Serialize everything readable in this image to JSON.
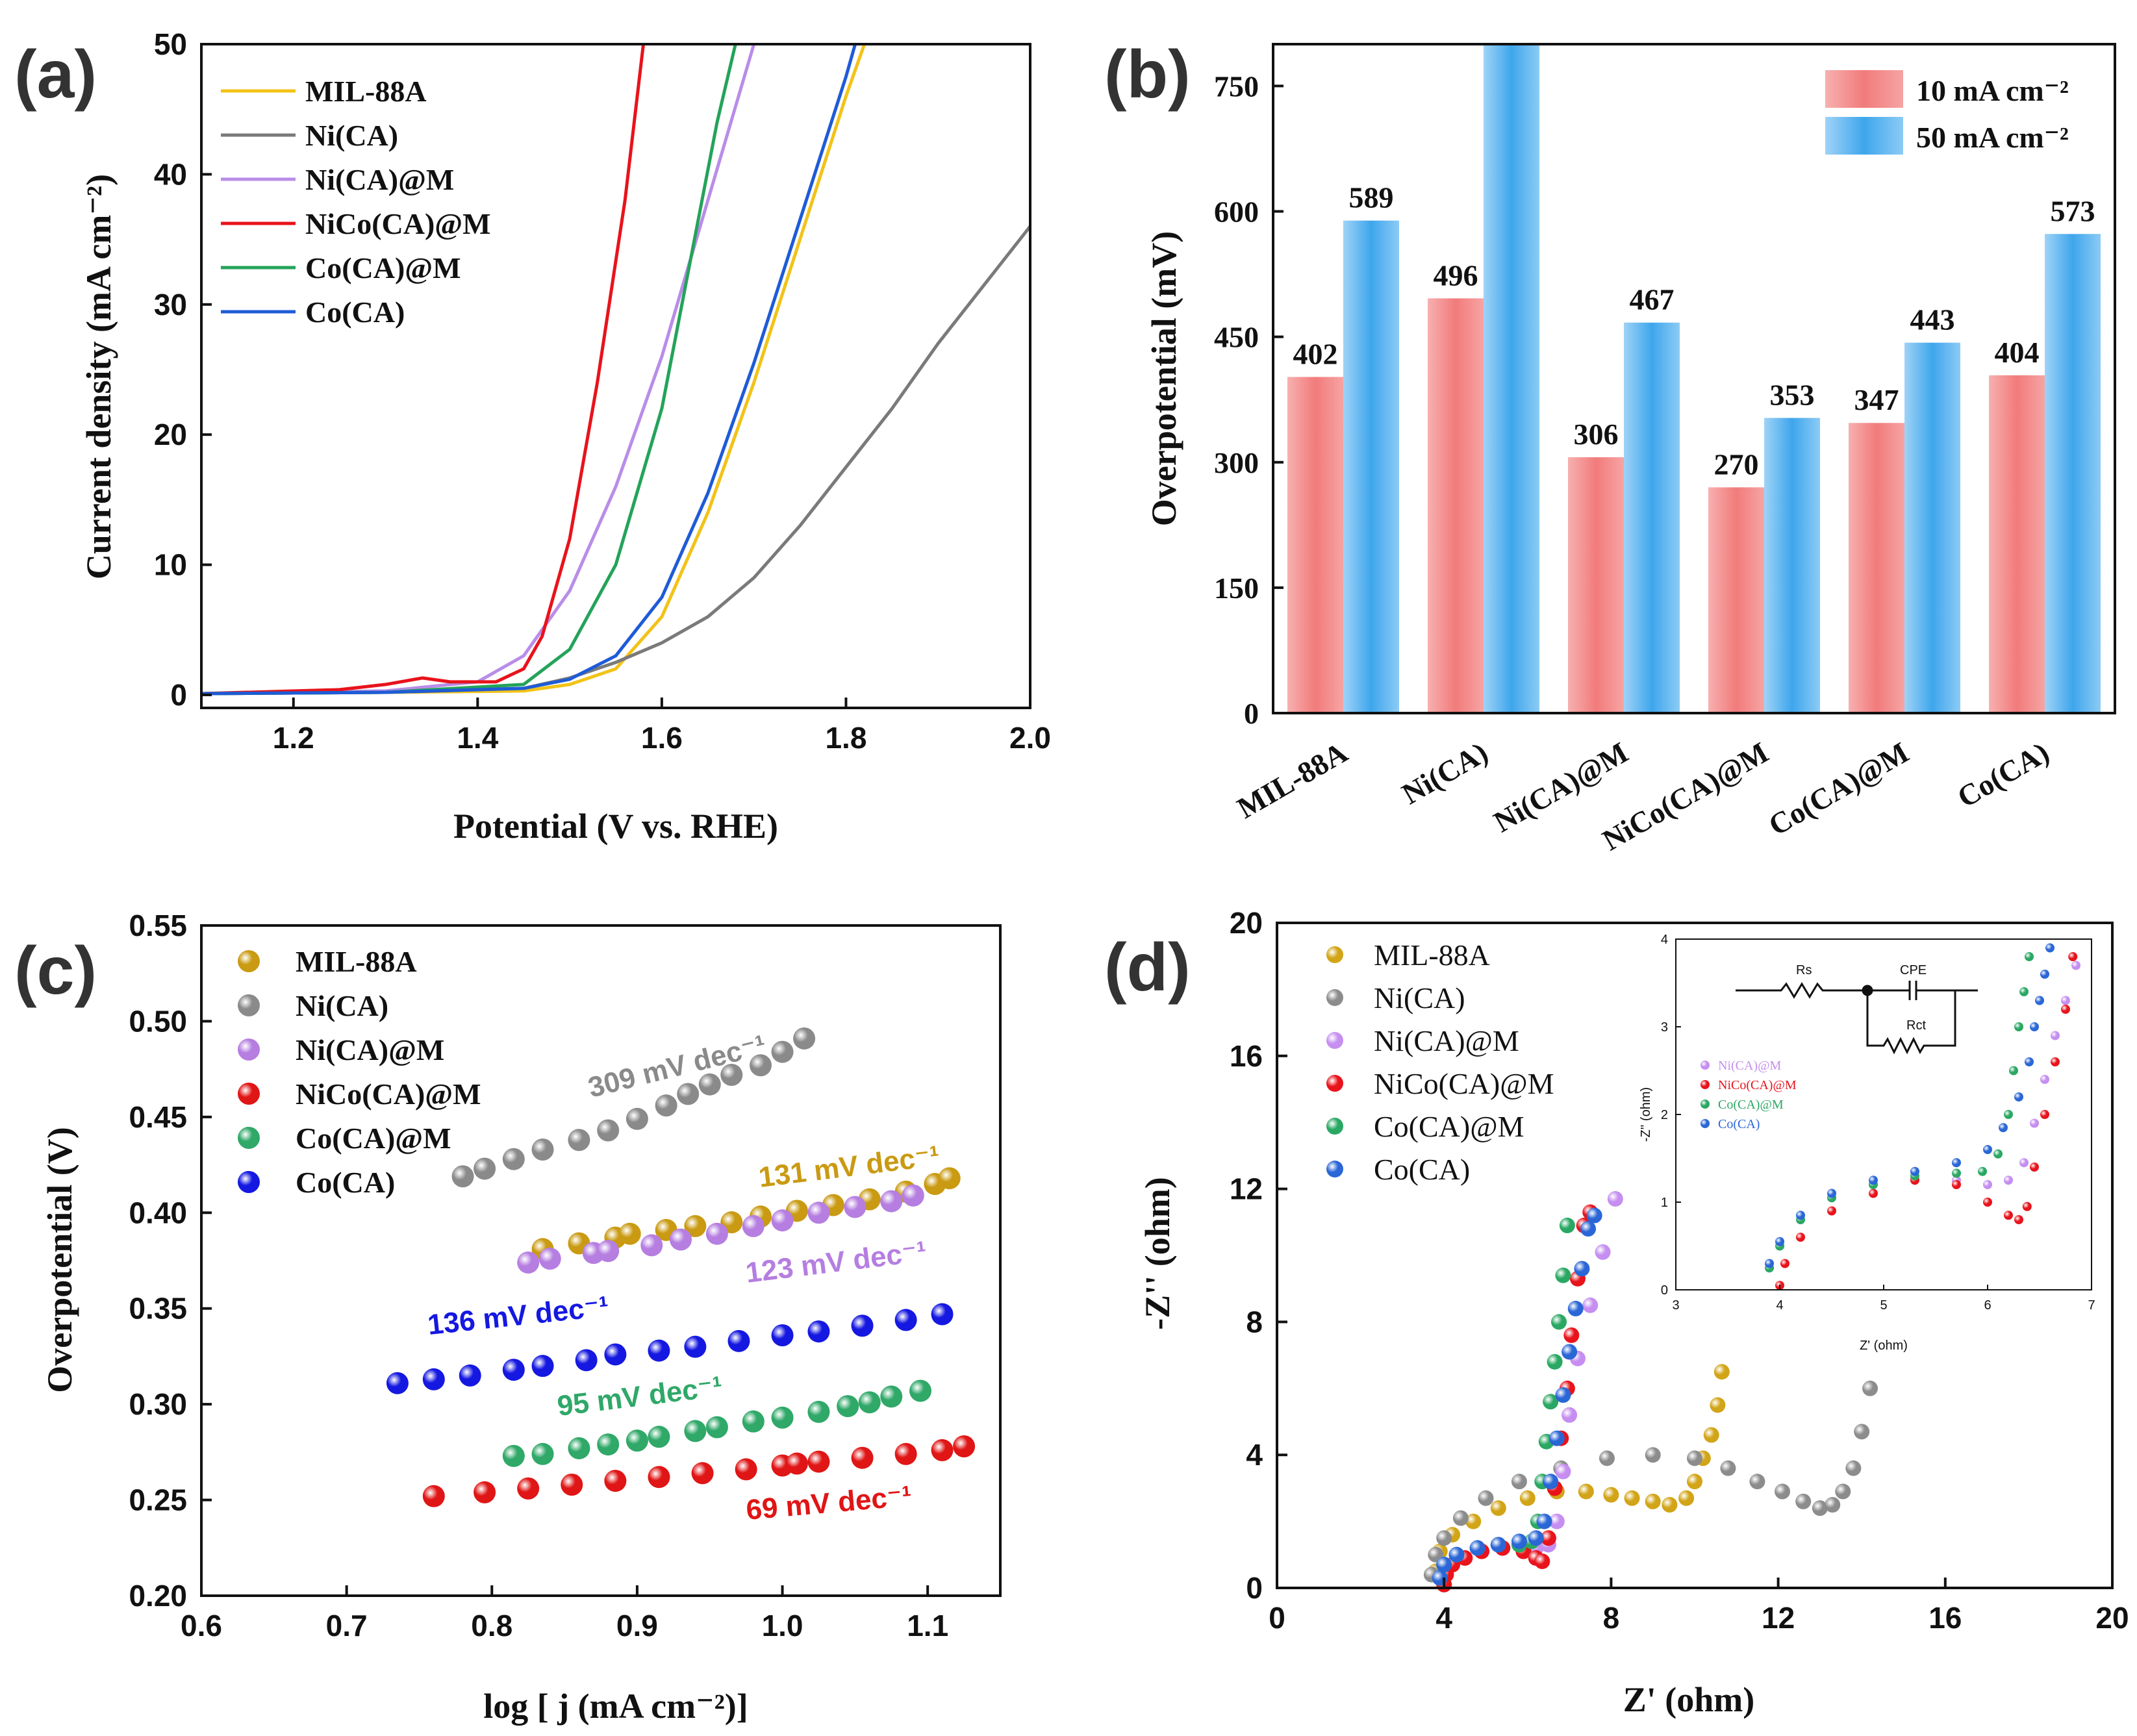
{
  "panels": {
    "a": "(a)",
    "b": "(b)",
    "c": "(c)",
    "d": "(d)"
  },
  "colors": {
    "MIL-88A": "#f2c318",
    "Ni(CA)": "#7a7a7a",
    "Ni(CA)@M": "#b98de8",
    "NiCo(CA)@M": "#e8131b",
    "Co(CA)@M": "#24a35a",
    "Co(CA)": "#1e5bd6",
    "bar10": "#f27b7b",
    "bar50": "#3ea6ec",
    "c_MIL": "#c99a12",
    "c_Ni": "#8a8a8a",
    "c_NiM": "#b57ee0",
    "c_NiCo": "#e01515",
    "c_CoM": "#2fa868",
    "c_Co": "#1518e0",
    "d_MIL": "#d2a417",
    "d_Ni": "#8c8c8c",
    "d_NiM": "#c58ef0",
    "d_NiCo": "#e8131b",
    "d_CoM": "#2aa863",
    "d_Co": "#2a66d6"
  },
  "chart_data": [
    {
      "type": "line",
      "panel": "a",
      "xlabel": "Potential (V vs. RHE)",
      "ylabel": "Current density (mA cm⁻²)",
      "xlim": [
        1.1,
        2.0
      ],
      "ylim": [
        -1,
        50
      ],
      "xticks": [
        1.2,
        1.4,
        1.6,
        1.8,
        2.0
      ],
      "xtick_labels": [
        "1.2",
        "1.4",
        "1.6",
        "1.8",
        "2.0"
      ],
      "yticks": [
        0,
        10,
        20,
        30,
        40,
        50
      ],
      "ytick_labels": [
        "0",
        "10",
        "20",
        "30",
        "40",
        "50"
      ],
      "legend": [
        "MIL-88A",
        "Ni(CA)",
        "Ni(CA)@M",
        "NiCo(CA)@M",
        "Co(CA)@M",
        "Co(CA)"
      ],
      "series": [
        {
          "name": "MIL-88A",
          "x": [
            1.1,
            1.3,
            1.45,
            1.5,
            1.55,
            1.6,
            1.65,
            1.7,
            1.75,
            1.8,
            1.82
          ],
          "y": [
            0.1,
            0.2,
            0.3,
            0.8,
            2.0,
            6.0,
            14.0,
            24.0,
            35.0,
            46.0,
            50.0
          ]
        },
        {
          "name": "Ni(CA)",
          "x": [
            1.1,
            1.3,
            1.45,
            1.5,
            1.55,
            1.6,
            1.65,
            1.7,
            1.75,
            1.8,
            1.85,
            1.9,
            1.95,
            2.0
          ],
          "y": [
            0.1,
            0.2,
            0.5,
            1.3,
            2.5,
            4.0,
            6.0,
            9.0,
            13.0,
            17.5,
            22.0,
            27.0,
            31.5,
            36.0
          ]
        },
        {
          "name": "Ni(CA)@M",
          "x": [
            1.1,
            1.3,
            1.4,
            1.45,
            1.5,
            1.55,
            1.6,
            1.65,
            1.7
          ],
          "y": [
            0.1,
            0.3,
            1.0,
            3.0,
            8.0,
            16.0,
            26.0,
            38.0,
            50.0
          ]
        },
        {
          "name": "NiCo(CA)@M",
          "x": [
            1.1,
            1.25,
            1.3,
            1.34,
            1.37,
            1.42,
            1.45,
            1.47,
            1.5,
            1.53,
            1.56,
            1.58
          ],
          "y": [
            0.1,
            0.4,
            0.8,
            1.3,
            1.0,
            1.0,
            2.0,
            4.5,
            12.0,
            24.0,
            38.0,
            50.0
          ]
        },
        {
          "name": "Co(CA)@M",
          "x": [
            1.1,
            1.3,
            1.45,
            1.5,
            1.55,
            1.6,
            1.63,
            1.66,
            1.68
          ],
          "y": [
            0.1,
            0.2,
            0.8,
            3.5,
            10.0,
            22.0,
            33.0,
            44.0,
            50.0
          ]
        },
        {
          "name": "Co(CA)",
          "x": [
            1.1,
            1.3,
            1.45,
            1.5,
            1.55,
            1.6,
            1.65,
            1.7,
            1.75,
            1.8,
            1.81
          ],
          "y": [
            0.1,
            0.2,
            0.5,
            1.2,
            3.0,
            7.5,
            15.5,
            25.5,
            36.5,
            47.5,
            50.0
          ]
        }
      ]
    },
    {
      "type": "bar",
      "panel": "b",
      "ylabel": "Overpotential (mV)",
      "categories": [
        "MIL-88A",
        "Ni(CA)",
        "Ni(CA)@M",
        "NiCo(CA)@M",
        "Co(CA)@M",
        "Co(CA)"
      ],
      "ylim": [
        0,
        800
      ],
      "yticks": [
        0,
        150,
        300,
        450,
        600,
        750
      ],
      "ytick_labels": [
        "0",
        "150",
        "300",
        "450",
        "600",
        "750"
      ],
      "legend_labels": [
        "10 mA cm⁻²",
        "50 mA cm⁻²"
      ],
      "series": [
        {
          "name": "10 mA cm⁻²",
          "values": [
            402,
            496,
            306,
            270,
            347,
            404
          ],
          "labels": [
            "402",
            "496",
            "306",
            "270",
            "347",
            "404"
          ]
        },
        {
          "name": "50 mA cm⁻²",
          "values": [
            589,
            800,
            467,
            353,
            443,
            573
          ],
          "labels": [
            "589",
            "",
            "467",
            "353",
            "443",
            "573"
          ]
        }
      ]
    },
    {
      "type": "scatter",
      "panel": "c",
      "xlabel": "log [ j (mA cm⁻²)]",
      "ylabel": "Overpotential (V)",
      "xlim": [
        0.6,
        1.15
      ],
      "ylim": [
        0.2,
        0.55
      ],
      "xticks": [
        0.6,
        0.7,
        0.8,
        0.9,
        1.0,
        1.1
      ],
      "xtick_labels": [
        "0.6",
        "0.7",
        "0.8",
        "0.9",
        "1.0",
        "1.1"
      ],
      "yticks": [
        0.2,
        0.25,
        0.3,
        0.35,
        0.4,
        0.45,
        0.5,
        0.55
      ],
      "ytick_labels": [
        "0.20",
        "0.25",
        "0.30",
        "0.35",
        "0.40",
        "0.45",
        "0.50",
        "0.55"
      ],
      "legend": [
        "MIL-88A",
        "Ni(CA)",
        "Ni(CA)@M",
        "NiCo(CA)@M",
        "Co(CA)@M",
        "Co(CA)"
      ],
      "annotations": [
        "309 mV dec⁻¹",
        "131 mV dec⁻¹",
        "123 mV dec⁻¹",
        "136 mV dec⁻¹",
        "95 mV dec⁻¹",
        "69 mV dec⁻¹"
      ],
      "series": [
        {
          "name": "MIL-88A",
          "x": [
            0.835,
            0.86,
            0.885,
            0.895,
            0.92,
            0.94,
            0.965,
            0.985,
            1.01,
            1.035,
            1.06,
            1.085,
            1.105,
            1.115
          ],
          "y": [
            0.381,
            0.384,
            0.387,
            0.389,
            0.391,
            0.393,
            0.395,
            0.398,
            0.401,
            0.404,
            0.407,
            0.411,
            0.415,
            0.418
          ]
        },
        {
          "name": "Ni(CA)",
          "x": [
            0.78,
            0.795,
            0.815,
            0.835,
            0.86,
            0.88,
            0.9,
            0.92,
            0.935,
            0.95,
            0.965,
            0.985,
            1.0,
            1.015
          ],
          "y": [
            0.419,
            0.423,
            0.428,
            0.433,
            0.438,
            0.443,
            0.449,
            0.456,
            0.462,
            0.467,
            0.472,
            0.477,
            0.484,
            0.491
          ]
        },
        {
          "name": "Ni(CA)@M",
          "x": [
            0.825,
            0.84,
            0.87,
            0.88,
            0.91,
            0.93,
            0.955,
            0.98,
            1.0,
            1.025,
            1.05,
            1.075,
            1.09
          ],
          "y": [
            0.374,
            0.376,
            0.379,
            0.38,
            0.383,
            0.386,
            0.389,
            0.393,
            0.396,
            0.4,
            0.403,
            0.406,
            0.409
          ]
        },
        {
          "name": "NiCo(CA)@M",
          "x": [
            0.76,
            0.795,
            0.825,
            0.855,
            0.885,
            0.915,
            0.945,
            0.975,
            1.0,
            1.01,
            1.025,
            1.055,
            1.085,
            1.11,
            1.125
          ],
          "y": [
            0.252,
            0.254,
            0.256,
            0.258,
            0.26,
            0.262,
            0.264,
            0.266,
            0.268,
            0.269,
            0.27,
            0.272,
            0.274,
            0.276,
            0.278
          ]
        },
        {
          "name": "Co(CA)@M",
          "x": [
            0.815,
            0.835,
            0.86,
            0.88,
            0.9,
            0.915,
            0.94,
            0.955,
            0.98,
            1.0,
            1.025,
            1.045,
            1.06,
            1.075,
            1.095
          ],
          "y": [
            0.273,
            0.274,
            0.277,
            0.279,
            0.281,
            0.283,
            0.286,
            0.288,
            0.291,
            0.293,
            0.296,
            0.299,
            0.301,
            0.304,
            0.307
          ]
        },
        {
          "name": "Co(CA)",
          "x": [
            0.735,
            0.76,
            0.785,
            0.815,
            0.835,
            0.865,
            0.885,
            0.915,
            0.94,
            0.97,
            1.0,
            1.025,
            1.055,
            1.085,
            1.11
          ],
          "y": [
            0.311,
            0.313,
            0.315,
            0.318,
            0.32,
            0.323,
            0.326,
            0.328,
            0.33,
            0.333,
            0.336,
            0.338,
            0.341,
            0.344,
            0.347
          ]
        }
      ]
    },
    {
      "type": "scatter",
      "panel": "d",
      "xlabel": "Z'  (ohm)",
      "ylabel": "-Z'' (ohm)",
      "xlim": [
        0,
        20
      ],
      "ylim": [
        0,
        20
      ],
      "xticks": [
        0,
        4,
        8,
        12,
        16,
        20
      ],
      "xtick_labels": [
        "0",
        "4",
        "8",
        "12",
        "16",
        "20"
      ],
      "yticks": [
        0,
        4,
        8,
        12,
        16,
        20
      ],
      "ytick_labels": [
        "0",
        "4",
        "8",
        "12",
        "16",
        "20"
      ],
      "legend": [
        "MIL-88A",
        "Ni(CA)",
        "Ni(CA)@M",
        "NiCo(CA)@M",
        "Co(CA)@M",
        "Co(CA)"
      ],
      "series": [
        {
          "name": "MIL-88A",
          "x": [
            3.8,
            3.9,
            4.2,
            4.7,
            5.3,
            6.0,
            6.7,
            7.4,
            8.0,
            8.5,
            9.0,
            9.4,
            9.8,
            10.0,
            10.2,
            10.4,
            10.55,
            10.65
          ],
          "y": [
            0.5,
            1.1,
            1.6,
            2.0,
            2.4,
            2.7,
            2.9,
            2.9,
            2.8,
            2.7,
            2.6,
            2.5,
            2.7,
            3.2,
            3.9,
            4.6,
            5.5,
            6.5
          ]
        },
        {
          "name": "Ni(CA)",
          "x": [
            3.7,
            3.8,
            4.0,
            4.4,
            5.0,
            5.8,
            6.8,
            7.9,
            9.0,
            10.0,
            10.8,
            11.5,
            12.1,
            12.6,
            13.0,
            13.3,
            13.55,
            13.8,
            14.0,
            14.2
          ],
          "y": [
            0.4,
            1.0,
            1.5,
            2.1,
            2.7,
            3.2,
            3.6,
            3.9,
            4.0,
            3.9,
            3.6,
            3.2,
            2.9,
            2.6,
            2.4,
            2.5,
            2.9,
            3.6,
            4.7,
            6.0
          ]
        },
        {
          "name": "Ni(CA)@M",
          "x": [
            3.9,
            4.0,
            4.3,
            4.8,
            5.3,
            5.8,
            6.2,
            6.5,
            6.7,
            6.85,
            7.0,
            7.2,
            7.5,
            7.8,
            8.1
          ],
          "y": [
            0.3,
            0.7,
            1.0,
            1.2,
            1.3,
            1.3,
            1.2,
            1.3,
            2.0,
            3.5,
            5.2,
            6.9,
            8.5,
            10.1,
            11.7
          ]
        },
        {
          "name": "NiCo(CA)@M",
          "x": [
            4.0,
            4.05,
            4.2,
            4.5,
            4.9,
            5.4,
            5.9,
            6.2,
            6.35,
            6.5,
            6.65,
            6.8,
            6.95,
            7.05,
            7.2,
            7.35,
            7.5
          ],
          "y": [
            0.1,
            0.4,
            0.7,
            0.9,
            1.1,
            1.2,
            1.1,
            0.9,
            0.8,
            1.5,
            3.0,
            4.5,
            6.0,
            7.6,
            9.3,
            10.9,
            11.3
          ]
        },
        {
          "name": "Co(CA)@M",
          "x": [
            3.9,
            4.0,
            4.3,
            4.8,
            5.3,
            5.8,
            6.1,
            6.25,
            6.35,
            6.45,
            6.55,
            6.65,
            6.75,
            6.85,
            6.95
          ],
          "y": [
            0.3,
            0.7,
            1.0,
            1.2,
            1.3,
            1.3,
            1.4,
            2.0,
            3.2,
            4.4,
            5.6,
            6.8,
            8.0,
            9.4,
            10.9
          ]
        },
        {
          "name": "Co(CA)",
          "x": [
            3.9,
            4.0,
            4.3,
            4.8,
            5.3,
            5.8,
            6.2,
            6.4,
            6.55,
            6.7,
            6.85,
            7.0,
            7.15,
            7.3,
            7.45,
            7.6
          ],
          "y": [
            0.3,
            0.7,
            1.0,
            1.2,
            1.3,
            1.4,
            1.5,
            2.0,
            3.2,
            4.5,
            5.8,
            7.1,
            8.4,
            9.6,
            10.8,
            11.2
          ]
        }
      ],
      "inset": {
        "xlim": [
          3,
          7
        ],
        "ylim": [
          0,
          4
        ],
        "xticks": [
          3,
          4,
          5,
          6,
          7
        ],
        "xtick_labels": [
          "3",
          "4",
          "5",
          "6",
          "7"
        ],
        "yticks": [
          0,
          1,
          2,
          3,
          4
        ],
        "ytick_labels": [
          "0",
          "1",
          "2",
          "3",
          "4"
        ],
        "xlabel": "Z' (ohm)",
        "ylabel": "-Z'' (ohm)",
        "circuit_labels": [
          "Rs",
          "CPE",
          "Rct"
        ],
        "legend": [
          "Ni(CA)@M",
          "NiCo(CA)@M",
          "Co(CA)@M",
          "Co(CA)"
        ],
        "series": [
          {
            "name": "Ni(CA)@M",
            "x": [
              3.9,
              4.0,
              4.2,
              4.5,
              4.9,
              5.3,
              5.7,
              6.0,
              6.2,
              6.35,
              6.45,
              6.55,
              6.65,
              6.75,
              6.85
            ],
            "y": [
              0.25,
              0.5,
              0.8,
              1.05,
              1.2,
              1.27,
              1.25,
              1.2,
              1.25,
              1.45,
              1.9,
              2.4,
              2.9,
              3.3,
              3.7
            ]
          },
          {
            "name": "NiCo(CA)@M",
            "x": [
              4.0,
              4.05,
              4.2,
              4.5,
              4.9,
              5.3,
              5.7,
              6.0,
              6.2,
              6.3,
              6.38,
              6.45,
              6.55,
              6.65,
              6.75,
              6.82
            ],
            "y": [
              0.05,
              0.3,
              0.6,
              0.9,
              1.1,
              1.25,
              1.2,
              1.0,
              0.85,
              0.8,
              0.95,
              1.4,
              2.0,
              2.6,
              3.2,
              3.8
            ]
          },
          {
            "name": "Co(CA)@M",
            "x": [
              3.9,
              4.0,
              4.2,
              4.5,
              4.9,
              5.3,
              5.7,
              5.95,
              6.1,
              6.2,
              6.25,
              6.3,
              6.35,
              6.4
            ],
            "y": [
              0.25,
              0.5,
              0.8,
              1.05,
              1.2,
              1.3,
              1.33,
              1.35,
              1.55,
              2.0,
              2.5,
              3.0,
              3.4,
              3.8
            ]
          },
          {
            "name": "Co(CA)",
            "x": [
              3.9,
              4.0,
              4.2,
              4.5,
              4.9,
              5.3,
              5.7,
              6.0,
              6.15,
              6.3,
              6.4,
              6.45,
              6.5,
              6.55,
              6.6
            ],
            "y": [
              0.3,
              0.55,
              0.85,
              1.1,
              1.25,
              1.35,
              1.45,
              1.6,
              1.85,
              2.2,
              2.6,
              3.0,
              3.3,
              3.6,
              3.9
            ]
          }
        ]
      }
    }
  ]
}
